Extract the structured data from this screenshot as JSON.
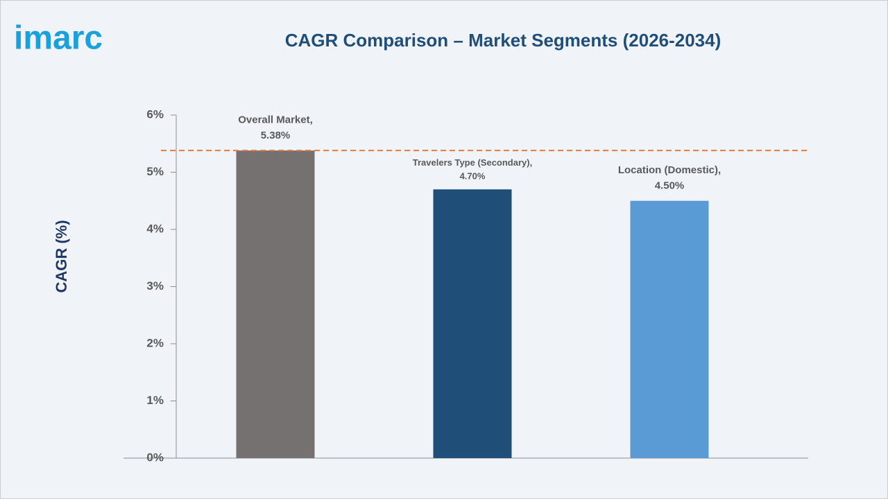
{
  "logo": "imarc",
  "chart_data": {
    "type": "bar",
    "title": "CAGR Comparison – Market Segments (2026-2034)",
    "y_label": "CAGR (%)",
    "categories": [
      "Overall Market,",
      "Travelers Type (Secondary),",
      "Location (Domestic),"
    ],
    "values": [
      5.38,
      4.7,
      4.5
    ],
    "value_labels": [
      "5.38%",
      "4.70%",
      "4.50%"
    ],
    "colors": [
      "#767171",
      "#1f4e79",
      "#5b9bd5"
    ],
    "ylim": [
      0,
      6
    ],
    "yticks": [
      {
        "value": 0,
        "label": "0%"
      },
      {
        "value": 1,
        "label": "1%"
      },
      {
        "value": 2,
        "label": "2%"
      },
      {
        "value": 3,
        "label": "3%"
      },
      {
        "value": 4,
        "label": "4%"
      },
      {
        "value": 5,
        "label": "5%"
      },
      {
        "value": 6,
        "label": "6%"
      }
    ],
    "reference_line": {
      "value": 5.38,
      "color": "#e8793a"
    },
    "grid": false
  }
}
